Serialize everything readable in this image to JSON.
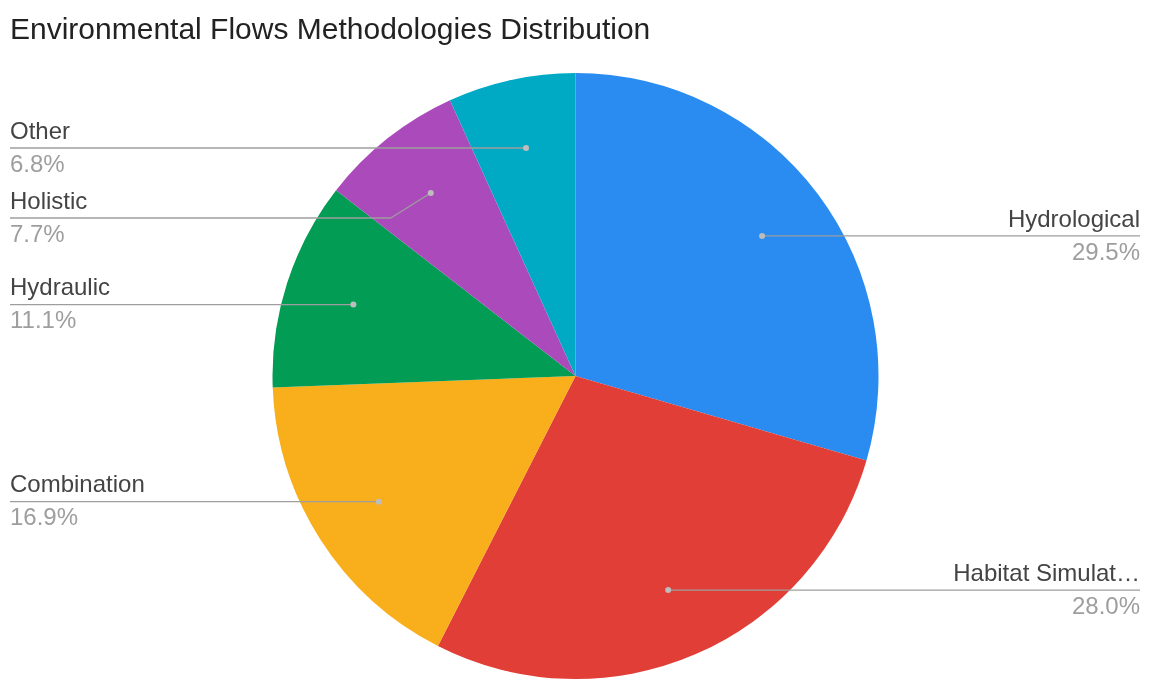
{
  "chart_data": {
    "type": "pie",
    "title": "Environmental Flows Methodologies Distribution",
    "categories": [
      "Hydrological",
      "Habitat Simulat…",
      "Combination",
      "Hydraulic",
      "Holistic",
      "Other"
    ],
    "values": [
      29.5,
      28.0,
      16.9,
      11.1,
      7.7,
      6.8
    ],
    "value_labels": [
      "29.5%",
      "28.0%",
      "16.9%",
      "11.1%",
      "7.7%",
      "6.8%"
    ],
    "colors": [
      "#2a8bf0",
      "#e03e36",
      "#f9ae1b",
      "#039c55",
      "#ab4bbb",
      "#00aac4"
    ],
    "legend": false
  }
}
